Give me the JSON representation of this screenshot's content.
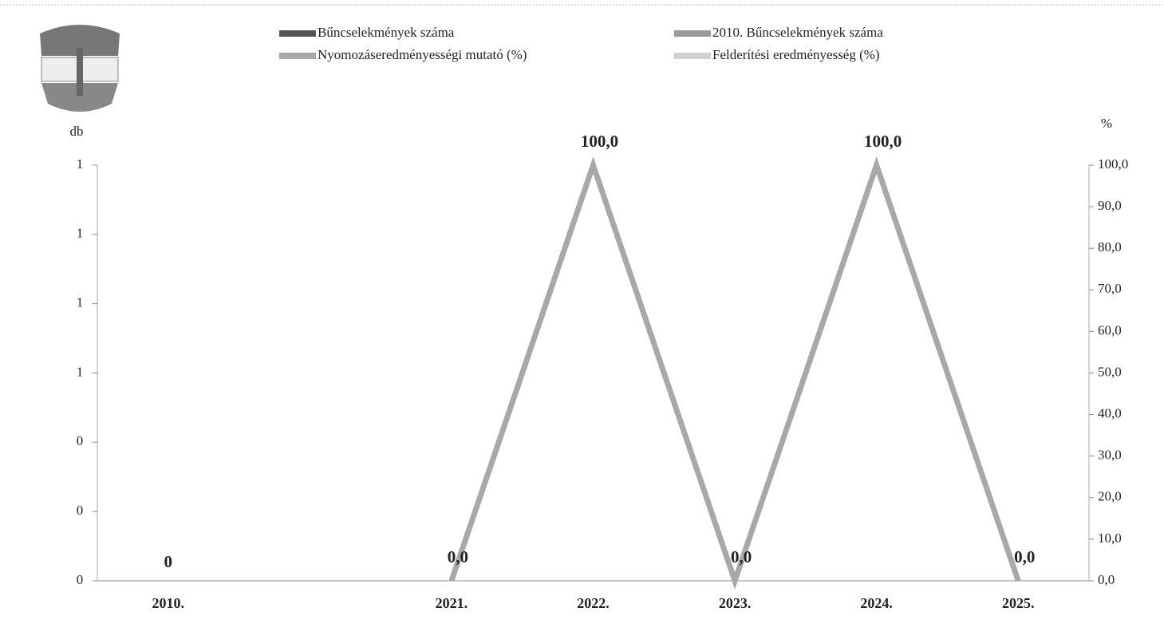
{
  "chart_data": {
    "type": "combo",
    "y_label": "db",
    "y2_label": "%",
    "categories": [
      "2010.",
      null,
      "2021.",
      "2022.",
      "2023.",
      "2024.",
      "2025."
    ],
    "ylim": [
      0,
      1.2
    ],
    "yticks": [
      0,
      {
        "value": 0.2,
        "label": "0"
      },
      {
        "value": 0.4,
        "label": "0"
      },
      {
        "value": 0.6,
        "label": "1"
      },
      {
        "value": 0.8,
        "label": "1"
      },
      {
        "value": 1.0,
        "label": "1"
      },
      {
        "value": 1.2,
        "label": "1"
      }
    ],
    "y2lim": [
      0,
      100
    ],
    "y2ticks": [
      {
        "value": 0,
        "label": "0,0"
      },
      {
        "value": 10,
        "label": "10,0"
      },
      {
        "value": 20,
        "label": "20,0"
      },
      {
        "value": 30,
        "label": "30,0"
      },
      {
        "value": 40,
        "label": "40,0"
      },
      {
        "value": 50,
        "label": "50,0"
      },
      {
        "value": 60,
        "label": "60,0"
      },
      {
        "value": 70,
        "label": "70,0"
      },
      {
        "value": 80,
        "label": "80,0"
      },
      {
        "value": 90,
        "label": "90,0"
      },
      {
        "value": 100,
        "label": "100,0"
      }
    ],
    "series": [
      {
        "name": "Bűncselekmények száma",
        "type": "bar",
        "color": "#555555",
        "values": [
          0,
          null,
          null,
          null,
          null,
          null,
          null
        ]
      },
      {
        "name": "2010. Bűncselekmények száma",
        "type": "bar",
        "color": "#9a9a9a",
        "values": [
          null,
          null,
          null,
          null,
          null,
          null,
          null
        ]
      },
      {
        "name": "Nyomozáseredményességi mutató (%)",
        "type": "line",
        "axis": "y2",
        "color": "#a8a8a8",
        "values": [
          null,
          null,
          0,
          100,
          0,
          100,
          0
        ],
        "value_labels": [
          null,
          null,
          "0,0",
          "100,0",
          "0,0",
          "100,0",
          "0,0"
        ]
      },
      {
        "name": "Felderítési eredményesség (%)",
        "type": "line",
        "axis": "y2",
        "color": "#d0d0d0",
        "values": [
          null,
          null,
          null,
          null,
          null,
          null,
          null
        ]
      }
    ]
  }
}
